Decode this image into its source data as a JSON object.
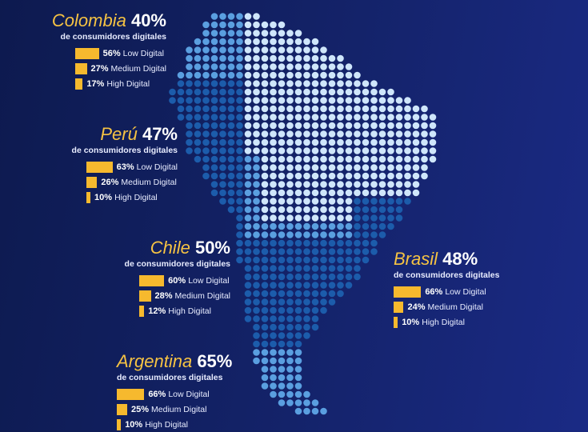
{
  "chart_data": {
    "type": "bar",
    "subtitle_text": "de consumidores digitales",
    "categories": [
      "Low Digital",
      "Medium Digital",
      "High Digital"
    ],
    "colors": {
      "bar": "#f6b92e",
      "country": "#f6c343",
      "background": "#13226a",
      "map_light": "#cfe6fb",
      "map_mid": "#5a9fe0",
      "map_dark": "#1c5cab"
    },
    "countries": [
      {
        "name": "Colombia",
        "total": "40%",
        "values": [
          56,
          27,
          17
        ],
        "value_labels": [
          "56%",
          "27%",
          "17%"
        ]
      },
      {
        "name": "Perú",
        "total": "47%",
        "values": [
          63,
          26,
          10
        ],
        "value_labels": [
          "63%",
          "26%",
          "10%"
        ]
      },
      {
        "name": "Chile",
        "total": "50%",
        "values": [
          60,
          28,
          12
        ],
        "value_labels": [
          "60%",
          "28%",
          "12%"
        ]
      },
      {
        "name": "Brasil",
        "total": "48%",
        "values": [
          66,
          24,
          10
        ],
        "value_labels": [
          "66%",
          "24%",
          "10%"
        ]
      },
      {
        "name": "Argentina",
        "total": "65%",
        "values": [
          66,
          25,
          10
        ],
        "value_labels": [
          "66%",
          "25%",
          "10%"
        ]
      }
    ]
  },
  "map": {
    "name": "south-america-dot-map"
  }
}
